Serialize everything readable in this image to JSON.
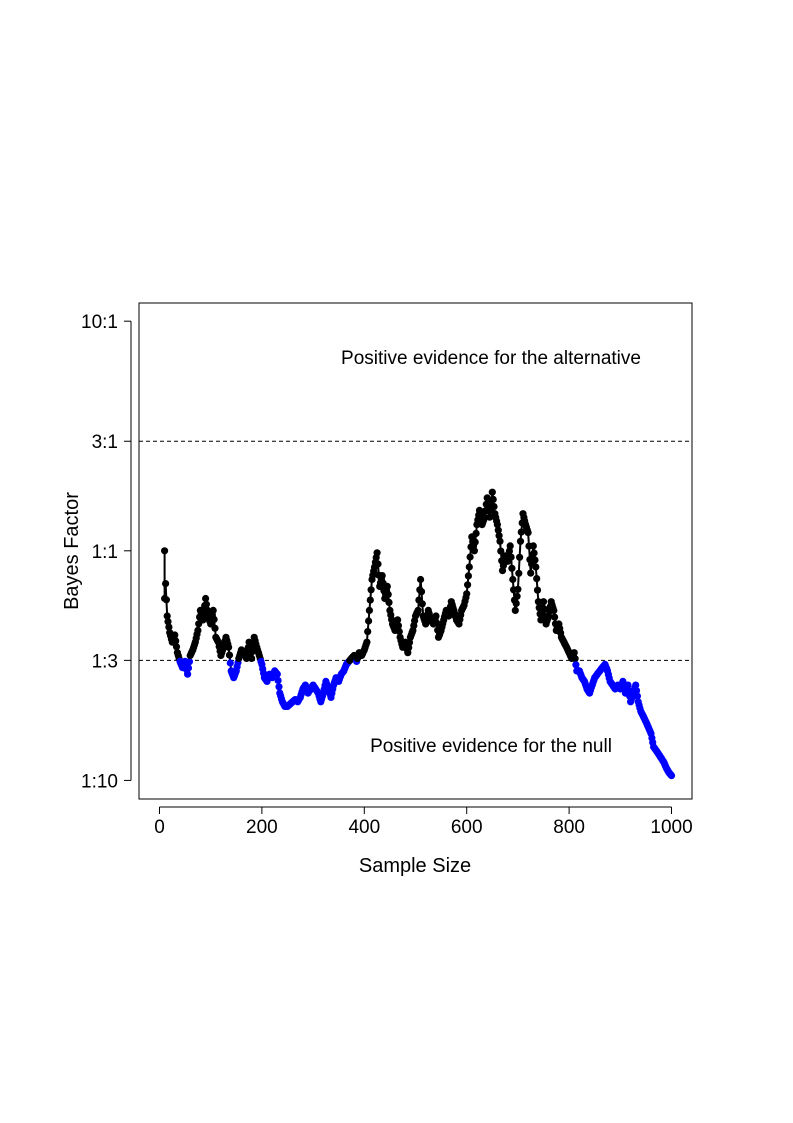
{
  "chart_data": {
    "type": "line",
    "xlabel": "Sample Size",
    "ylabel": "Bayes Factor",
    "y_scale": "log",
    "xlim": [
      -40,
      1040
    ],
    "ylim": [
      0.083,
      12
    ],
    "grid": false,
    "x_ticks": [
      0,
      200,
      400,
      600,
      800,
      1000
    ],
    "y_ticks": [
      {
        "value": 10,
        "label": "10:1"
      },
      {
        "value": 3,
        "label": "3:1"
      },
      {
        "value": 1,
        "label": "1:1"
      },
      {
        "value": 0.3333,
        "label": "1:3"
      },
      {
        "value": 0.1,
        "label": "1:10"
      }
    ],
    "reference_lines": [
      3,
      0.3333
    ],
    "annotations": [
      {
        "text": "Positive evidence for the alternative",
        "x": 700,
        "y": 5.6
      },
      {
        "text": "Positive evidence for the null",
        "x": 650,
        "y": 0.12
      }
    ],
    "colors": {
      "default": "#000000",
      "below_threshold": "#0000ff",
      "frame": "#000000"
    },
    "threshold": 0.3333,
    "series": [
      {
        "points": [
          [
            10,
            1.0
          ],
          [
            10,
            0.62
          ],
          [
            12,
            0.72
          ],
          [
            15,
            0.52
          ],
          [
            20,
            0.44
          ],
          [
            25,
            0.4
          ],
          [
            30,
            0.43
          ],
          [
            35,
            0.36
          ],
          [
            40,
            0.33
          ],
          [
            45,
            0.31
          ],
          [
            50,
            0.33
          ],
          [
            55,
            0.29
          ],
          [
            60,
            0.35
          ],
          [
            65,
            0.37
          ],
          [
            70,
            0.4
          ],
          [
            75,
            0.45
          ],
          [
            80,
            0.55
          ],
          [
            85,
            0.5
          ],
          [
            90,
            0.62
          ],
          [
            95,
            0.52
          ],
          [
            100,
            0.48
          ],
          [
            105,
            0.55
          ],
          [
            110,
            0.42
          ],
          [
            115,
            0.4
          ],
          [
            120,
            0.35
          ],
          [
            125,
            0.38
          ],
          [
            130,
            0.42
          ],
          [
            135,
            0.38
          ],
          [
            140,
            0.3
          ],
          [
            145,
            0.28
          ],
          [
            150,
            0.3
          ],
          [
            155,
            0.34
          ],
          [
            160,
            0.37
          ],
          [
            165,
            0.36
          ],
          [
            170,
            0.34
          ],
          [
            175,
            0.4
          ],
          [
            180,
            0.34
          ],
          [
            185,
            0.42
          ],
          [
            190,
            0.38
          ],
          [
            195,
            0.35
          ],
          [
            200,
            0.32
          ],
          [
            205,
            0.28
          ],
          [
            210,
            0.27
          ],
          [
            215,
            0.29
          ],
          [
            220,
            0.28
          ],
          [
            225,
            0.3
          ],
          [
            230,
            0.29
          ],
          [
            235,
            0.24
          ],
          [
            240,
            0.22
          ],
          [
            245,
            0.21
          ],
          [
            250,
            0.21
          ],
          [
            255,
            0.215
          ],
          [
            260,
            0.22
          ],
          [
            265,
            0.225
          ],
          [
            270,
            0.22
          ],
          [
            275,
            0.23
          ],
          [
            280,
            0.25
          ],
          [
            285,
            0.26
          ],
          [
            290,
            0.24
          ],
          [
            295,
            0.25
          ],
          [
            300,
            0.26
          ],
          [
            305,
            0.25
          ],
          [
            310,
            0.24
          ],
          [
            315,
            0.22
          ],
          [
            320,
            0.24
          ],
          [
            325,
            0.27
          ],
          [
            330,
            0.25
          ],
          [
            335,
            0.23
          ],
          [
            340,
            0.26
          ],
          [
            345,
            0.28
          ],
          [
            350,
            0.27
          ],
          [
            355,
            0.29
          ],
          [
            360,
            0.3
          ],
          [
            365,
            0.32
          ],
          [
            370,
            0.33
          ],
          [
            375,
            0.34
          ],
          [
            380,
            0.35
          ],
          [
            385,
            0.33
          ],
          [
            390,
            0.36
          ],
          [
            395,
            0.35
          ],
          [
            400,
            0.37
          ],
          [
            405,
            0.4
          ],
          [
            410,
            0.55
          ],
          [
            415,
            0.75
          ],
          [
            420,
            0.85
          ],
          [
            425,
            0.98
          ],
          [
            430,
            0.7
          ],
          [
            435,
            0.78
          ],
          [
            440,
            0.62
          ],
          [
            445,
            0.7
          ],
          [
            450,
            0.55
          ],
          [
            455,
            0.48
          ],
          [
            460,
            0.45
          ],
          [
            465,
            0.5
          ],
          [
            470,
            0.42
          ],
          [
            475,
            0.38
          ],
          [
            480,
            0.4
          ],
          [
            485,
            0.36
          ],
          [
            490,
            0.42
          ],
          [
            495,
            0.45
          ],
          [
            500,
            0.52
          ],
          [
            505,
            0.55
          ],
          [
            510,
            0.75
          ],
          [
            515,
            0.52
          ],
          [
            520,
            0.48
          ],
          [
            525,
            0.55
          ],
          [
            530,
            0.5
          ],
          [
            535,
            0.48
          ],
          [
            540,
            0.52
          ],
          [
            545,
            0.42
          ],
          [
            550,
            0.45
          ],
          [
            555,
            0.5
          ],
          [
            560,
            0.55
          ],
          [
            565,
            0.52
          ],
          [
            570,
            0.6
          ],
          [
            575,
            0.55
          ],
          [
            580,
            0.5
          ],
          [
            585,
            0.48
          ],
          [
            590,
            0.55
          ],
          [
            595,
            0.58
          ],
          [
            600,
            0.65
          ],
          [
            605,
            0.85
          ],
          [
            610,
            1.15
          ],
          [
            615,
            1.0
          ],
          [
            620,
            1.3
          ],
          [
            625,
            1.5
          ],
          [
            630,
            1.3
          ],
          [
            635,
            1.4
          ],
          [
            640,
            1.7
          ],
          [
            645,
            1.4
          ],
          [
            650,
            1.8
          ],
          [
            655,
            1.45
          ],
          [
            660,
            1.3
          ],
          [
            665,
            1.1
          ],
          [
            670,
            0.82
          ],
          [
            675,
            0.95
          ],
          [
            680,
            0.9
          ],
          [
            685,
            1.05
          ],
          [
            690,
            0.75
          ],
          [
            695,
            0.55
          ],
          [
            700,
            0.68
          ],
          [
            705,
            1.1
          ],
          [
            710,
            1.45
          ],
          [
            715,
            1.3
          ],
          [
            720,
            1.2
          ],
          [
            725,
            0.8
          ],
          [
            730,
            1.05
          ],
          [
            735,
            0.85
          ],
          [
            740,
            0.6
          ],
          [
            745,
            0.5
          ],
          [
            750,
            0.6
          ],
          [
            755,
            0.48
          ],
          [
            760,
            0.52
          ],
          [
            765,
            0.6
          ],
          [
            770,
            0.55
          ],
          [
            775,
            0.45
          ],
          [
            780,
            0.48
          ],
          [
            785,
            0.42
          ],
          [
            790,
            0.4
          ],
          [
            795,
            0.38
          ],
          [
            800,
            0.36
          ],
          [
            805,
            0.34
          ],
          [
            810,
            0.36
          ],
          [
            815,
            0.3
          ],
          [
            820,
            0.3
          ],
          [
            825,
            0.28
          ],
          [
            830,
            0.27
          ],
          [
            835,
            0.25
          ],
          [
            840,
            0.24
          ],
          [
            845,
            0.26
          ],
          [
            850,
            0.28
          ],
          [
            855,
            0.29
          ],
          [
            860,
            0.3
          ],
          [
            865,
            0.31
          ],
          [
            870,
            0.32
          ],
          [
            875,
            0.3
          ],
          [
            880,
            0.27
          ],
          [
            885,
            0.26
          ],
          [
            890,
            0.25
          ],
          [
            895,
            0.26
          ],
          [
            900,
            0.25
          ],
          [
            905,
            0.27
          ],
          [
            910,
            0.24
          ],
          [
            915,
            0.26
          ],
          [
            920,
            0.22
          ],
          [
            925,
            0.24
          ],
          [
            930,
            0.26
          ],
          [
            935,
            0.22
          ],
          [
            940,
            0.2
          ],
          [
            945,
            0.19
          ],
          [
            950,
            0.18
          ],
          [
            955,
            0.17
          ],
          [
            960,
            0.16
          ],
          [
            965,
            0.14
          ],
          [
            970,
            0.135
          ],
          [
            975,
            0.13
          ],
          [
            980,
            0.125
          ],
          [
            985,
            0.12
          ],
          [
            990,
            0.113
          ],
          [
            995,
            0.108
          ],
          [
            1000,
            0.105
          ]
        ]
      }
    ]
  }
}
